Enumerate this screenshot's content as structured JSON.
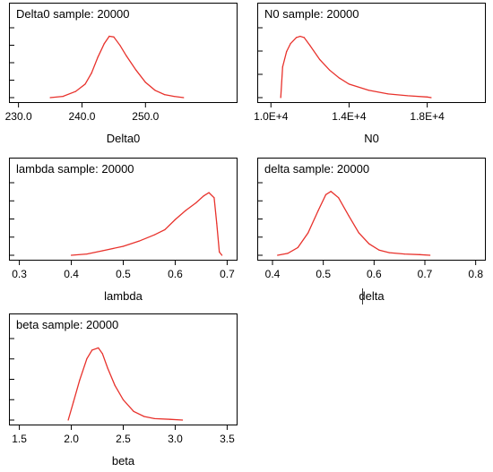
{
  "chart_data": [
    {
      "type": "line",
      "title": "Delta0 sample: 20000",
      "xlabel": "Delta0",
      "xlim": [
        228.5,
        264.5
      ],
      "xticks": [
        230,
        240,
        250
      ],
      "xtick_labels": [
        "230.0",
        "240.0",
        "250.0"
      ],
      "ylim": [
        0,
        1.08
      ],
      "yticks": 5,
      "x": [
        235,
        237,
        239,
        240.5,
        241.5,
        242.5,
        243.5,
        244.3,
        245,
        246,
        247,
        248.5,
        250,
        251.5,
        253,
        254.5,
        256
      ],
      "y": [
        0.0,
        0.02,
        0.1,
        0.22,
        0.4,
        0.66,
        0.88,
        1.0,
        0.99,
        0.85,
        0.68,
        0.45,
        0.25,
        0.12,
        0.05,
        0.02,
        0.0
      ]
    },
    {
      "type": "line",
      "title": "N0 sample: 20000",
      "xlabel": "N0",
      "xlim": [
        9300,
        21000
      ],
      "xticks": [
        10000,
        14000,
        18000
      ],
      "xtick_labels": [
        "1.0E+4",
        "1.4E+4",
        "1.8E+4"
      ],
      "ylim": [
        0,
        1.08
      ],
      "yticks": 4,
      "x": [
        10500,
        10600,
        10800,
        11000,
        11300,
        11500,
        11700,
        12000,
        12500,
        13000,
        13500,
        14000,
        15000,
        16000,
        17000,
        18000,
        18200
      ],
      "y": [
        0.0,
        0.5,
        0.75,
        0.88,
        0.98,
        1.0,
        0.98,
        0.85,
        0.62,
        0.45,
        0.32,
        0.22,
        0.12,
        0.06,
        0.03,
        0.01,
        0.0
      ]
    },
    {
      "type": "line",
      "title": "lambda sample: 20000",
      "xlabel": "lambda",
      "xlim": [
        0.28,
        0.72
      ],
      "xticks": [
        0.3,
        0.4,
        0.5,
        0.6,
        0.7
      ],
      "xtick_labels": [
        "0.3",
        "0.4",
        "0.5",
        "0.6",
        "0.7"
      ],
      "ylim": [
        0,
        1.08
      ],
      "yticks": 5,
      "x": [
        0.4,
        0.43,
        0.46,
        0.5,
        0.53,
        0.56,
        0.58,
        0.6,
        0.62,
        0.64,
        0.655,
        0.665,
        0.675,
        0.68,
        0.685,
        0.69
      ],
      "y": [
        0.0,
        0.02,
        0.07,
        0.14,
        0.22,
        0.32,
        0.4,
        0.56,
        0.7,
        0.82,
        0.93,
        0.98,
        0.9,
        0.5,
        0.05,
        0.0
      ]
    },
    {
      "type": "line",
      "title": "delta sample: 20000",
      "xlabel": "delta",
      "xlim": [
        0.37,
        0.82
      ],
      "xticks": [
        0.4,
        0.5,
        0.6,
        0.7,
        0.8
      ],
      "xtick_labels": [
        "0.4",
        "0.5",
        "0.6",
        "0.7",
        "0.8"
      ],
      "ylim": [
        0,
        1.08
      ],
      "yticks": 5,
      "x": [
        0.41,
        0.43,
        0.45,
        0.47,
        0.49,
        0.505,
        0.515,
        0.53,
        0.55,
        0.57,
        0.59,
        0.61,
        0.63,
        0.66,
        0.69,
        0.71
      ],
      "y": [
        0.0,
        0.03,
        0.12,
        0.35,
        0.7,
        0.95,
        1.0,
        0.9,
        0.62,
        0.35,
        0.18,
        0.08,
        0.04,
        0.02,
        0.01,
        0.0
      ]
    },
    {
      "type": "line",
      "title": "beta sample: 20000",
      "xlabel": "beta",
      "xlim": [
        1.4,
        3.6
      ],
      "xticks": [
        1.5,
        2.0,
        2.5,
        3.0,
        3.5
      ],
      "xtick_labels": [
        "1.5",
        "2.0",
        "2.5",
        "3.0",
        "3.5"
      ],
      "ylim": [
        0,
        1.08
      ],
      "yticks": 5,
      "x": [
        1.97,
        2.02,
        2.08,
        2.15,
        2.2,
        2.26,
        2.3,
        2.35,
        2.42,
        2.5,
        2.6,
        2.7,
        2.8,
        2.95,
        3.07
      ],
      "y": [
        0.0,
        0.25,
        0.55,
        0.85,
        0.97,
        1.0,
        0.92,
        0.72,
        0.48,
        0.28,
        0.12,
        0.05,
        0.02,
        0.01,
        0.0
      ]
    }
  ]
}
